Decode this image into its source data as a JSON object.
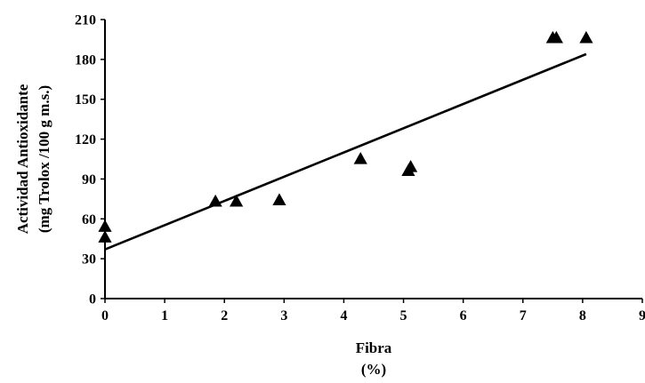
{
  "chart_data": {
    "type": "scatter",
    "xlabel": "Fibra",
    "xlabel_unit": "(%)",
    "ylabel": "Actividad Antioxidante",
    "ylabel_unit": "(mg Trolox /100 g m.s.)",
    "xlim": [
      0,
      9
    ],
    "ylim": [
      0,
      210
    ],
    "x_ticks": [
      "0",
      "1",
      "2",
      "3",
      "4",
      "5",
      "6",
      "7",
      "8",
      "9"
    ],
    "y_ticks": [
      "0",
      "30",
      "60",
      "90",
      "120",
      "150",
      "180",
      "210"
    ],
    "grid": false,
    "marker": "triangle",
    "color": "#000000",
    "points": [
      {
        "x": 0.0,
        "y": 54
      },
      {
        "x": 0.0,
        "y": 46
      },
      {
        "x": 1.85,
        "y": 73
      },
      {
        "x": 2.2,
        "y": 73
      },
      {
        "x": 2.92,
        "y": 74
      },
      {
        "x": 4.28,
        "y": 105
      },
      {
        "x": 5.08,
        "y": 96
      },
      {
        "x": 5.12,
        "y": 99
      },
      {
        "x": 7.5,
        "y": 196
      },
      {
        "x": 7.56,
        "y": 196
      },
      {
        "x": 8.06,
        "y": 196
      }
    ],
    "trendline": {
      "x": [
        0,
        8.06
      ],
      "y": [
        37,
        184
      ]
    }
  }
}
